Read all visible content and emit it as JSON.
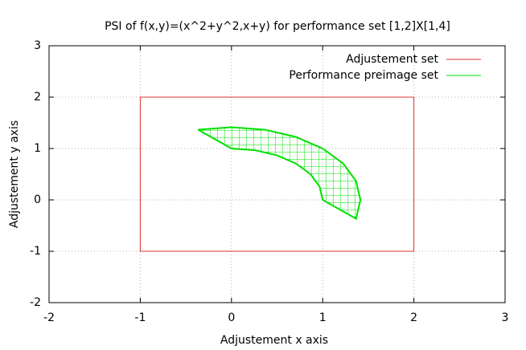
{
  "chart_data": {
    "type": "line",
    "title": "PSI of f(x,y)=(x^2+y^2,x+y) for performance set [1,2]X[1,4]",
    "x_label": "Adjustement x axis",
    "y_label": "Adjustement y axis",
    "xlim": [
      -2,
      3
    ],
    "ylim": [
      -2,
      3
    ],
    "xticks": [
      -2,
      -1,
      0,
      1,
      2,
      3
    ],
    "yticks": [
      -2,
      -1,
      0,
      1,
      2,
      3
    ],
    "grid": true,
    "legend": "top-right",
    "series": [
      {
        "name": "Adjustement set",
        "color": "#e03030",
        "x": [
          -1,
          2,
          2,
          -1,
          -1
        ],
        "y": [
          -1,
          -1,
          2,
          2,
          -1
        ]
      },
      {
        "name": "Performance preimage set",
        "color": "#00e000",
        "x": [
          -0.366,
          0,
          0.366,
          0.707,
          1,
          1.225,
          1.366,
          1.414,
          1.366,
          1,
          0.966,
          0.866,
          0.707,
          0.5,
          0.259,
          0,
          -0.366
        ],
        "y": [
          1.366,
          1.414,
          1.366,
          1.225,
          1,
          0.707,
          0.366,
          0,
          -0.366,
          0,
          0.259,
          0.5,
          0.707,
          0.866,
          0.966,
          1,
          1.366
        ]
      }
    ]
  }
}
